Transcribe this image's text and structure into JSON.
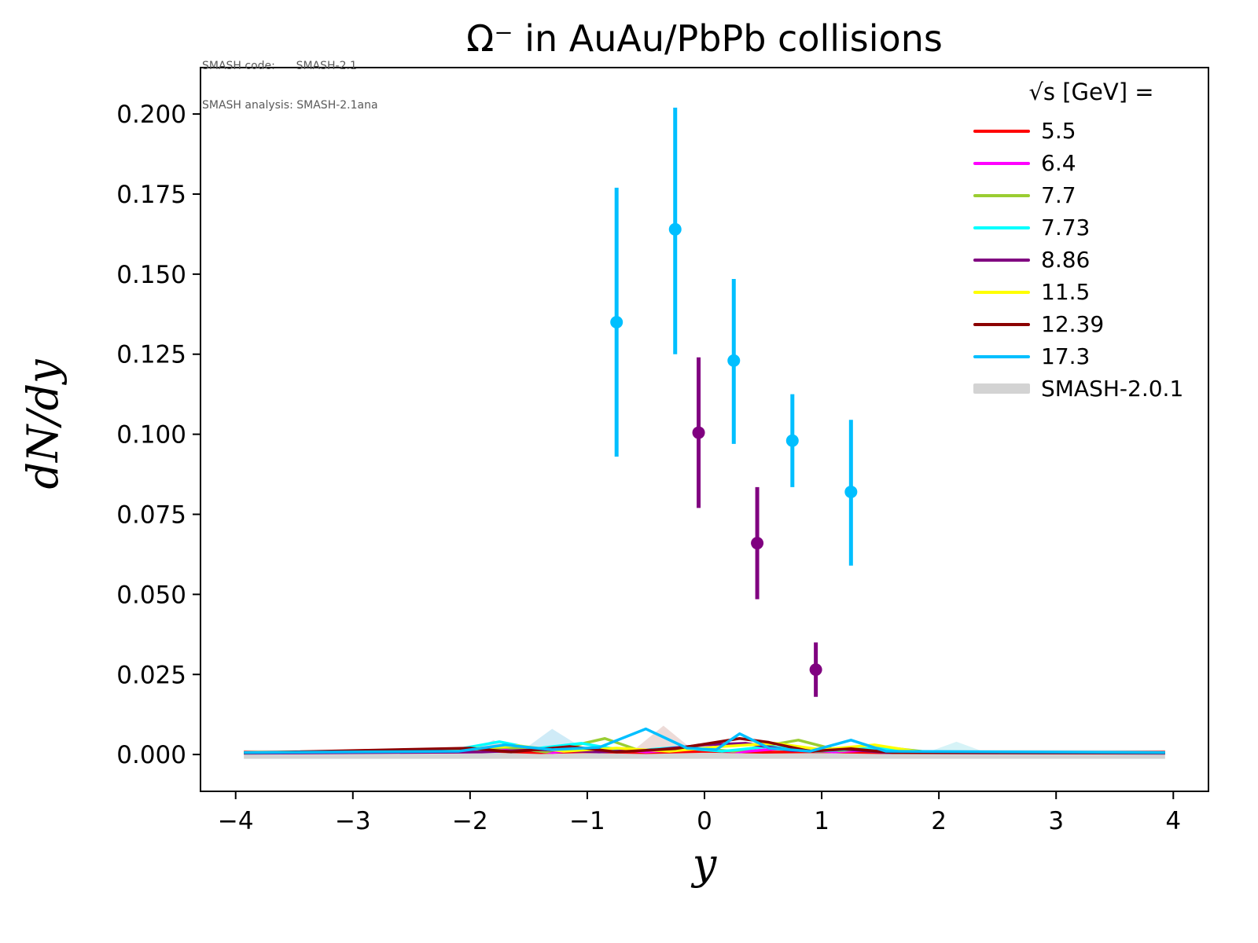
{
  "watermark": {
    "line1": "SMASH code:      SMASH-2.1",
    "line2": "SMASH analysis: SMASH-2.1ana"
  },
  "chart_data": {
    "type": "line",
    "title": "Ω⁻ in AuAu/PbPb collisions",
    "xlabel": "y",
    "ylabel": "dN/dy",
    "xlim": [
      -4.3,
      4.3
    ],
    "ylim": [
      -0.0115,
      0.2145
    ],
    "grid": false,
    "legend_position": "upper right",
    "xticks": {
      "values": [
        -4,
        -3,
        -2,
        -1,
        0,
        1,
        2,
        3,
        4
      ],
      "labels": [
        "−4",
        "−3",
        "−2",
        "−1",
        "0",
        "1",
        "2",
        "3",
        "4"
      ]
    },
    "yticks": {
      "values": [
        0.0,
        0.025,
        0.05,
        0.075,
        0.1,
        0.125,
        0.15,
        0.175,
        0.2
      ],
      "labels": [
        "0.000",
        "0.025",
        "0.050",
        "0.075",
        "0.100",
        "0.125",
        "0.150",
        "0.175",
        "0.200"
      ]
    },
    "legend": {
      "title": "√s  [GeV] =",
      "entries": [
        {
          "label": "5.5",
          "color": "#ff0000",
          "lw": 4
        },
        {
          "label": "6.4",
          "color": "#ff00ff",
          "lw": 4
        },
        {
          "label": "7.7",
          "color": "#9acd32",
          "lw": 4
        },
        {
          "label": "7.73",
          "color": "#00ffff",
          "lw": 4
        },
        {
          "label": "8.86",
          "color": "#800080",
          "lw": 4
        },
        {
          "label": "11.5",
          "color": "#ffff00",
          "lw": 4
        },
        {
          "label": "12.39",
          "color": "#8b0000",
          "lw": 4
        },
        {
          "label": "17.3",
          "color": "#00bfff",
          "lw": 4
        },
        {
          "label": "SMASH-2.0.1",
          "color": "#d3d3d3",
          "lw": 13
        }
      ]
    },
    "band": {
      "label": "SMASH-2.0.1",
      "color": "#d3d3d3",
      "x": [
        -3.93,
        3.93
      ],
      "y": 0.0
    },
    "shaded_regions": [
      {
        "color": "#e8a0b0",
        "opacity": 0.45,
        "points": [
          [
            -2.05,
            0
          ],
          [
            -1.8,
            0.0045
          ],
          [
            -1.55,
            0
          ]
        ]
      },
      {
        "color": "#9fd8ef",
        "opacity": 0.5,
        "points": [
          [
            -1.6,
            0
          ],
          [
            -1.3,
            0.008
          ],
          [
            -0.95,
            0
          ]
        ]
      },
      {
        "color": "#d8b0a8",
        "opacity": 0.45,
        "points": [
          [
            -0.65,
            0
          ],
          [
            -0.35,
            0.009
          ],
          [
            -0.05,
            0
          ]
        ]
      },
      {
        "color": "#f0ee9a",
        "opacity": 0.5,
        "points": [
          [
            0.8,
            0
          ],
          [
            1.0,
            0.003
          ],
          [
            1.25,
            0
          ]
        ]
      },
      {
        "color": "#aee8f0",
        "opacity": 0.5,
        "points": [
          [
            1.85,
            0
          ],
          [
            2.15,
            0.004
          ],
          [
            2.45,
            0
          ]
        ]
      }
    ],
    "series": [
      {
        "label": "5.5",
        "color": "#ff0000",
        "points": [
          [
            -3.93,
            0.0007
          ],
          [
            -2.2,
            0.0007
          ],
          [
            -1.8,
            0.001
          ],
          [
            -1.4,
            0.0006
          ],
          [
            -1.0,
            0.0009
          ],
          [
            -0.5,
            0.0006
          ],
          [
            0.0,
            0.001
          ],
          [
            0.5,
            0.0007
          ],
          [
            1.0,
            0.0009
          ],
          [
            1.5,
            0.0006
          ],
          [
            2.0,
            0.0007
          ],
          [
            3.93,
            0.0007
          ]
        ]
      },
      {
        "label": "6.4",
        "color": "#ff00ff",
        "points": [
          [
            -3.93,
            0.0005
          ],
          [
            -2.0,
            0.0008
          ],
          [
            -1.6,
            0.0018
          ],
          [
            -1.3,
            0.0006
          ],
          [
            -0.9,
            0.0022
          ],
          [
            -0.5,
            0.0008
          ],
          [
            -0.1,
            0.0018
          ],
          [
            0.3,
            0.0008
          ],
          [
            0.7,
            0.002
          ],
          [
            1.1,
            0.0008
          ],
          [
            1.5,
            0.0015
          ],
          [
            1.9,
            0.0006
          ],
          [
            3.93,
            0.0005
          ]
        ]
      },
      {
        "label": "7.7",
        "color": "#9acd32",
        "points": [
          [
            -3.93,
            0.0005
          ],
          [
            -2.1,
            0.0008
          ],
          [
            -1.7,
            0.0022
          ],
          [
            -1.35,
            0.0008
          ],
          [
            -0.85,
            0.005
          ],
          [
            -0.55,
            0.0012
          ],
          [
            -0.15,
            0.0022
          ],
          [
            0.25,
            0.001
          ],
          [
            0.8,
            0.0045
          ],
          [
            1.15,
            0.0012
          ],
          [
            1.55,
            0.0022
          ],
          [
            1.95,
            0.0006
          ],
          [
            3.93,
            0.0005
          ]
        ]
      },
      {
        "label": "7.73",
        "color": "#00ffff",
        "points": [
          [
            -3.93,
            0.0006
          ],
          [
            -2.2,
            0.001
          ],
          [
            -1.75,
            0.004
          ],
          [
            -1.45,
            0.0018
          ],
          [
            -1.05,
            0.0035
          ],
          [
            -0.65,
            0.001
          ],
          [
            -0.25,
            0.0022
          ],
          [
            0.15,
            0.001
          ],
          [
            0.55,
            0.0025
          ],
          [
            0.95,
            0.001
          ],
          [
            1.45,
            0.002
          ],
          [
            1.85,
            0.0008
          ],
          [
            3.93,
            0.0006
          ]
        ]
      },
      {
        "label": "8.86",
        "color": "#800080",
        "points": [
          [
            -3.93,
            0.0004
          ],
          [
            -1.9,
            0.0008
          ],
          [
            -1.4,
            0.0015
          ],
          [
            -0.9,
            0.0008
          ],
          [
            -0.4,
            0.0015
          ],
          [
            0.0,
            0.003
          ],
          [
            0.35,
            0.0035
          ],
          [
            0.75,
            0.0012
          ],
          [
            1.15,
            0.0018
          ],
          [
            1.55,
            0.0006
          ],
          [
            3.93,
            0.0004
          ]
        ]
      },
      {
        "label": "11.5",
        "color": "#ffff00",
        "points": [
          [
            -3.93,
            0.0006
          ],
          [
            -2.1,
            0.0015
          ],
          [
            -1.6,
            0.0028
          ],
          [
            -1.2,
            0.001
          ],
          [
            -0.75,
            0.002
          ],
          [
            -0.3,
            0.001
          ],
          [
            0.15,
            0.0025
          ],
          [
            0.6,
            0.0035
          ],
          [
            1.0,
            0.0015
          ],
          [
            1.45,
            0.003
          ],
          [
            1.8,
            0.001
          ],
          [
            2.1,
            0.0006
          ],
          [
            3.93,
            0.0006
          ]
        ]
      },
      {
        "label": "12.39",
        "color": "#8b0000",
        "points": [
          [
            -3.93,
            0.0005
          ],
          [
            -2.0,
            0.002
          ],
          [
            -1.65,
            0.0008
          ],
          [
            -1.15,
            0.0025
          ],
          [
            -0.75,
            0.0008
          ],
          [
            -0.25,
            0.0018
          ],
          [
            0.3,
            0.005
          ],
          [
            0.55,
            0.0038
          ],
          [
            0.9,
            0.001
          ],
          [
            1.25,
            0.0018
          ],
          [
            1.6,
            0.0006
          ],
          [
            3.93,
            0.0005
          ]
        ]
      },
      {
        "label": "17.3",
        "color": "#00bfff",
        "points": [
          [
            -3.93,
            0.0006
          ],
          [
            -2.1,
            0.001
          ],
          [
            -1.7,
            0.003
          ],
          [
            -1.3,
            0.0015
          ],
          [
            -0.9,
            0.0022
          ],
          [
            -0.5,
            0.008
          ],
          [
            -0.15,
            0.002
          ],
          [
            0.1,
            0.0015
          ],
          [
            0.3,
            0.0065
          ],
          [
            0.55,
            0.002
          ],
          [
            0.9,
            0.001
          ],
          [
            1.25,
            0.0045
          ],
          [
            1.55,
            0.001
          ],
          [
            3.93,
            0.0006
          ]
        ]
      }
    ],
    "errorbar_series": [
      {
        "label": "8.86",
        "color": "#800080",
        "points": [
          {
            "x": -0.05,
            "y": 0.1005,
            "lo": 0.0235,
            "hi": 0.0235
          },
          {
            "x": 0.45,
            "y": 0.066,
            "lo": 0.0175,
            "hi": 0.0175
          },
          {
            "x": 0.95,
            "y": 0.0265,
            "lo": 0.0085,
            "hi": 0.0085
          }
        ]
      },
      {
        "label": "17.3",
        "color": "#00bfff",
        "points": [
          {
            "x": -0.75,
            "y": 0.135,
            "lo": 0.042,
            "hi": 0.042
          },
          {
            "x": -0.25,
            "y": 0.164,
            "lo": 0.039,
            "hi": 0.038
          },
          {
            "x": 0.25,
            "y": 0.123,
            "lo": 0.026,
            "hi": 0.0255
          },
          {
            "x": 0.75,
            "y": 0.098,
            "lo": 0.0145,
            "hi": 0.0145
          },
          {
            "x": 1.25,
            "y": 0.082,
            "lo": 0.023,
            "hi": 0.0225
          }
        ]
      }
    ]
  }
}
